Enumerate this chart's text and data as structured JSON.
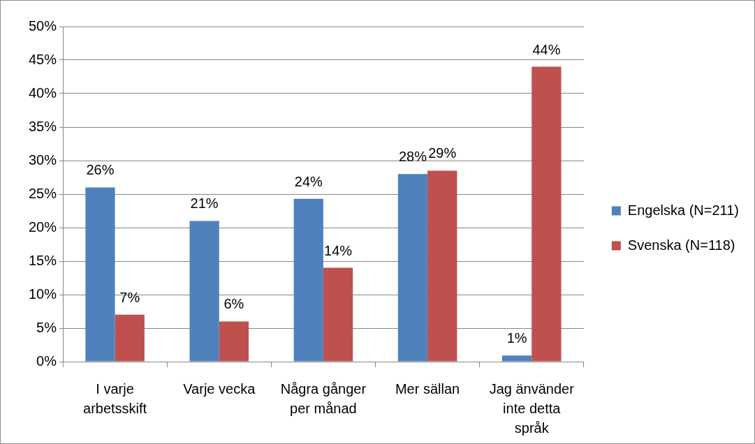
{
  "chart_data": {
    "type": "bar",
    "categories": [
      "I varje arbetsskift",
      "Varje vecka",
      "Några gånger per månad",
      "Mer sällan",
      "Jag änvänder inte detta språk"
    ],
    "series": [
      {
        "name": "Engelska (N=211)",
        "color": "#4f81bd",
        "values": [
          26,
          21,
          24.3,
          28,
          0.9
        ],
        "value_labels": [
          "26%",
          "21%",
          "24%",
          "28%",
          "1%"
        ]
      },
      {
        "name": "Svenska (N=118)",
        "color": "#c0504d",
        "values": [
          7,
          6,
          14,
          28.5,
          44
        ],
        "value_labels": [
          "7%",
          "6%",
          "14%",
          "29%",
          "44%"
        ]
      }
    ],
    "ylim": [
      0,
      50
    ],
    "yticks": [
      {
        "value": 0,
        "label": "0%"
      },
      {
        "value": 5,
        "label": "5%"
      },
      {
        "value": 10,
        "label": "10%"
      },
      {
        "value": 15,
        "label": "15%"
      },
      {
        "value": 20,
        "label": "20%"
      },
      {
        "value": 25,
        "label": "25%"
      },
      {
        "value": 30,
        "label": "30%"
      },
      {
        "value": 35,
        "label": "35%"
      },
      {
        "value": 40,
        "label": "40%"
      },
      {
        "value": 45,
        "label": "45%"
      },
      {
        "value": 50,
        "label": "50%"
      }
    ],
    "grid": "y",
    "legend": "right"
  }
}
